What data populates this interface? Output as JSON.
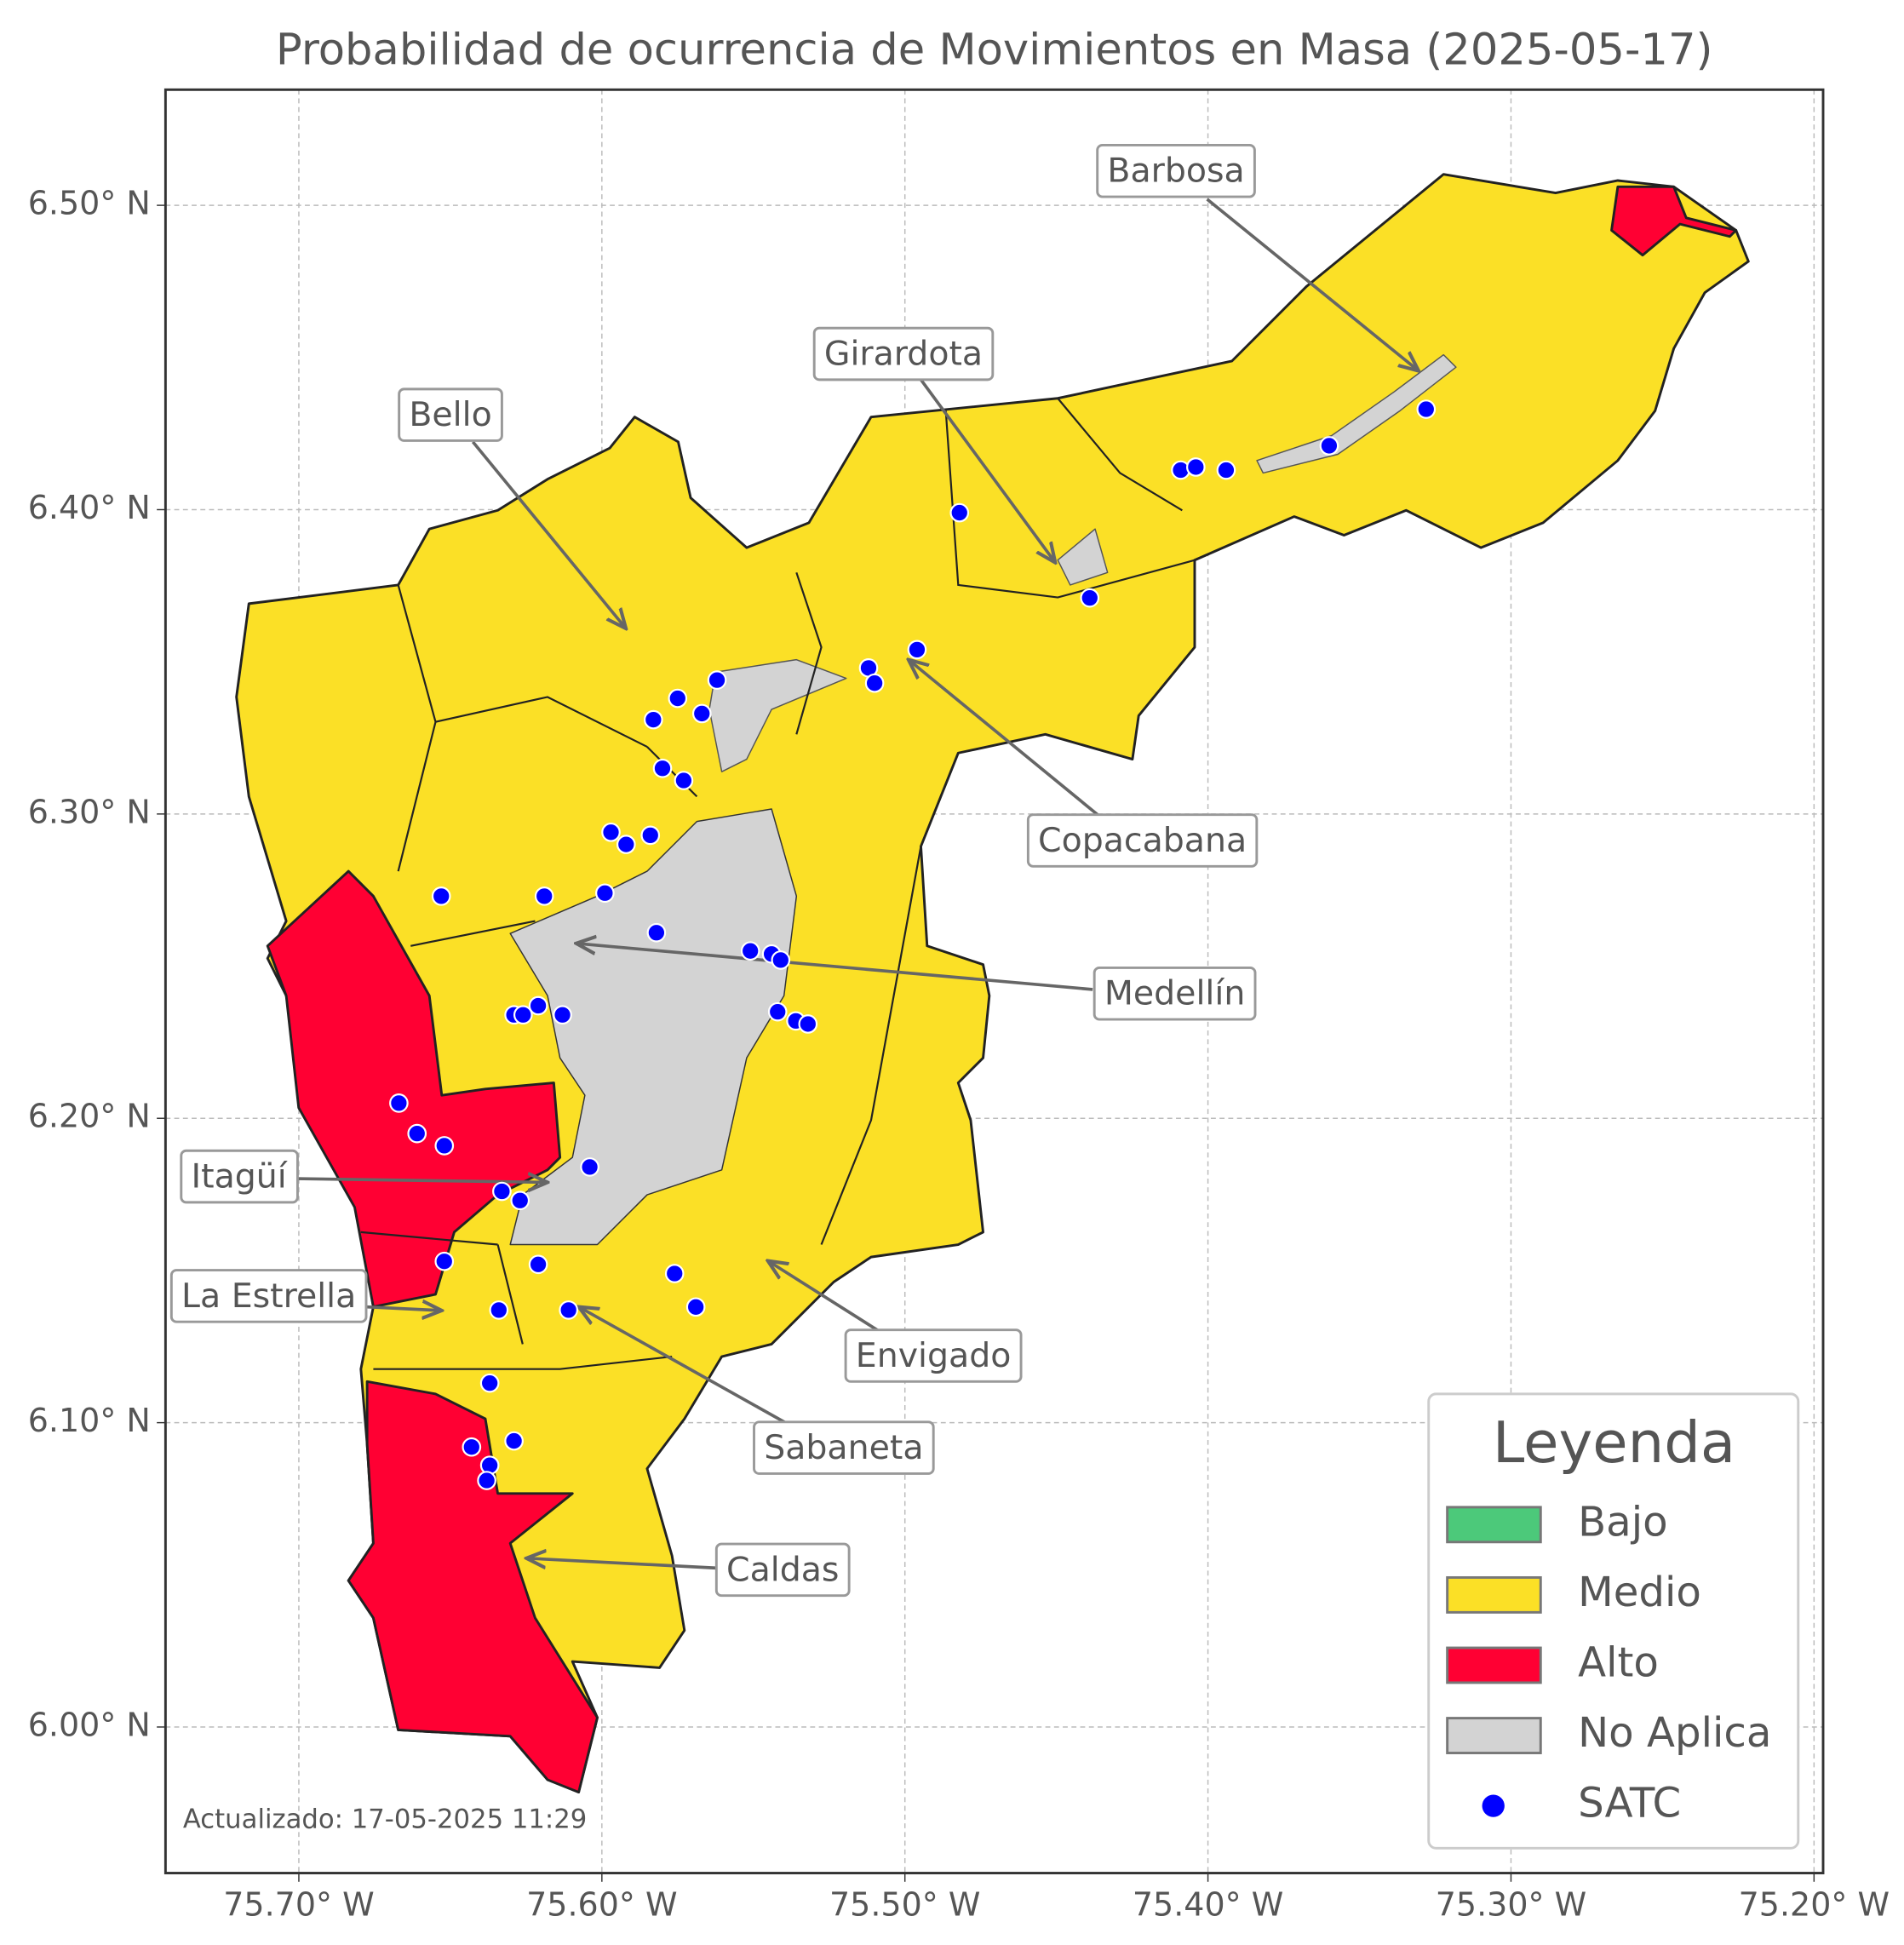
{
  "chart_data": {
    "type": "map",
    "title": "Probabilidad de ocurrencia de Movimientos en Masa (2025-05-17)",
    "xlim": [
      -75.744,
      -75.197
    ],
    "ylim": [
      5.952,
      6.538
    ],
    "xticks": [
      {
        "value": -75.7,
        "label": "75.70° W"
      },
      {
        "value": -75.6,
        "label": "75.60° W"
      },
      {
        "value": -75.5,
        "label": "75.50° W"
      },
      {
        "value": -75.4,
        "label": "75.40° W"
      },
      {
        "value": -75.3,
        "label": "75.30° W"
      },
      {
        "value": -75.2,
        "label": "75.20° W"
      }
    ],
    "yticks": [
      {
        "value": 6.0,
        "label": "6.00° N"
      },
      {
        "value": 6.1,
        "label": "6.10° N"
      },
      {
        "value": 6.2,
        "label": "6.20° N"
      },
      {
        "value": 6.3,
        "label": "6.30° N"
      },
      {
        "value": 6.4,
        "label": "6.40° N"
      },
      {
        "value": 6.5,
        "label": "6.50° N"
      }
    ],
    "grid": true,
    "annotations": [
      "Barbosa",
      "Girardota",
      "Bello",
      "Copacabana",
      "Medellín",
      "Itagüí",
      "La Estrella",
      "Envigado",
      "Sabaneta",
      "Caldas"
    ],
    "legend": {
      "title": "Leyenda",
      "position": "lower right",
      "items": [
        {
          "name": "Bajo",
          "color": "#4cc97a"
        },
        {
          "name": "Medio",
          "color": "#fbe026"
        },
        {
          "name": "Alto",
          "color": "#ff0033"
        },
        {
          "name": "No Aplica",
          "color": "#d3d3d3"
        },
        {
          "name": "SATC",
          "color": "#0000ff"
        }
      ]
    },
    "points": {
      "lon": [
        -75.482,
        -75.409,
        -75.404,
        -75.394,
        -75.36,
        -75.328,
        -75.439,
        -75.496,
        -75.512,
        -75.51,
        -75.562,
        -75.575,
        -75.583,
        -75.567,
        -75.58,
        -75.573,
        -75.597,
        -75.592,
        -75.584,
        -75.653,
        -75.619,
        -75.599,
        -75.582,
        -75.551,
        -75.544,
        -75.541,
        -75.542,
        -75.536,
        -75.532,
        -75.629,
        -75.626,
        -75.621,
        -75.613,
        -75.667,
        -75.661,
        -75.652,
        -75.604,
        -75.633,
        -75.627,
        -75.652,
        -75.621,
        -75.576,
        -75.569,
        -75.634,
        -75.611,
        -75.637,
        -75.643,
        -75.629,
        -75.637,
        -75.638
      ],
      "lat": [
        6.399,
        6.413,
        6.414,
        6.413,
        6.421,
        6.433,
        6.371,
        6.354,
        6.348,
        6.343,
        6.344,
        6.338,
        6.331,
        6.333,
        6.315,
        6.311,
        6.294,
        6.29,
        6.293,
        6.273,
        6.273,
        6.274,
        6.261,
        6.255,
        6.254,
        6.252,
        6.235,
        6.232,
        6.231,
        6.234,
        6.234,
        6.237,
        6.234,
        6.205,
        6.195,
        6.191,
        6.184,
        6.176,
        6.173,
        6.153,
        6.152,
        6.149,
        6.138,
        6.137,
        6.137,
        6.113,
        6.092,
        6.094,
        6.086,
        6.081
      ]
    },
    "footnote": "Actualizado: 17-05-2025 11:29"
  }
}
